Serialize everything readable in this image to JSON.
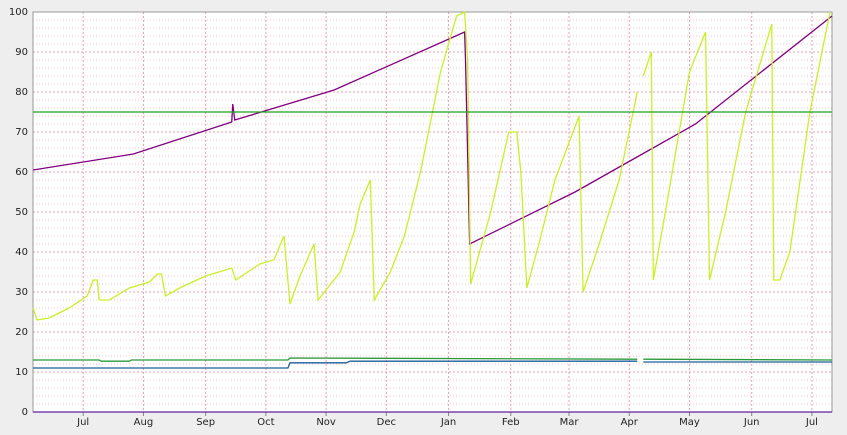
{
  "chart_data": {
    "type": "line",
    "xlim": [
      0,
      398
    ],
    "ylim": [
      0,
      100
    ],
    "xticks": [
      {
        "value": 25,
        "label": "Jul"
      },
      {
        "value": 55,
        "label": "Aug"
      },
      {
        "value": 86,
        "label": "Sep"
      },
      {
        "value": 116,
        "label": "Oct"
      },
      {
        "value": 146,
        "label": "Nov"
      },
      {
        "value": 176,
        "label": "Dec"
      },
      {
        "value": 207,
        "label": "Jan"
      },
      {
        "value": 238,
        "label": "Feb"
      },
      {
        "value": 267,
        "label": "Mar"
      },
      {
        "value": 297,
        "label": "Apr"
      },
      {
        "value": 327,
        "label": "May"
      },
      {
        "value": 358,
        "label": "Jun"
      },
      {
        "value": 388,
        "label": "Jul"
      }
    ],
    "yticks": [
      0,
      10,
      20,
      30,
      40,
      50,
      60,
      70,
      80,
      90,
      100
    ],
    "yminorticks": [
      2,
      4,
      6,
      8,
      12,
      14,
      16,
      18,
      22,
      24,
      26,
      28,
      32,
      34,
      36,
      38,
      42,
      44,
      46,
      48,
      52,
      54,
      56,
      58,
      62,
      64,
      66,
      68,
      72,
      74,
      76,
      78,
      82,
      84,
      86,
      88,
      92,
      94,
      96,
      98
    ],
    "grid": true,
    "series": [
      {
        "color": "#800080",
        "x": [
          0,
          50,
          99,
          99.5,
          100.5,
          150,
          215,
          215.5,
          217.5,
          270,
          300,
          330,
          398
        ],
        "values": [
          60.5,
          64.5,
          72.5,
          77,
          73,
          80.5,
          95,
          87,
          42,
          55,
          63.5,
          72,
          99
        ]
      },
      {
        "color": "#c8f028",
        "x": [
          0,
          2,
          8,
          18,
          27,
          30,
          32,
          33,
          38,
          48,
          58,
          62,
          64,
          66,
          73,
          86,
          99,
          101,
          107,
          113,
          120,
          125,
          128,
          133,
          140,
          142,
          153,
          160,
          163,
          168,
          170,
          178,
          185,
          193,
          203,
          211,
          215,
          216.5,
          218,
          228,
          237,
          241,
          243,
          246,
          252,
          260,
          272,
          274,
          282,
          292,
          301,
          302,
          304,
          308,
          309,
          315,
          327,
          335,
          337,
          345,
          355,
          368,
          369,
          372,
          377,
          387,
          397
        ],
        "values": [
          26,
          23,
          23.5,
          26,
          29,
          33,
          33,
          28,
          28,
          31,
          32.5,
          34.5,
          34.5,
          29,
          31,
          34,
          36,
          33,
          35,
          37,
          38,
          44,
          27,
          34,
          42,
          28,
          35,
          45,
          52,
          58,
          28,
          35,
          44,
          60,
          85,
          99,
          100,
          88,
          32,
          50,
          70,
          70,
          60,
          31,
          42,
          58,
          74,
          30,
          42,
          58,
          80,
          null,
          84,
          90,
          33,
          50,
          85,
          95,
          33,
          50,
          75,
          97,
          33,
          33,
          40,
          75,
          100
        ]
      },
      {
        "color": "#22a022",
        "x": [
          0,
          398
        ],
        "values": [
          75,
          75
        ]
      },
      {
        "color": "#2a9a3a",
        "x": [
          0,
          33,
          34,
          48,
          49,
          127,
          128,
          301,
          302,
          304,
          398
        ],
        "values": [
          13,
          13,
          12.7,
          12.7,
          13,
          13,
          13.5,
          13.2,
          null,
          13.2,
          13
        ]
      },
      {
        "color": "#1f5f9a",
        "x": [
          0,
          127,
          128,
          156,
          158,
          301,
          302,
          304,
          398
        ],
        "values": [
          11,
          11,
          12.3,
          12.3,
          12.7,
          12.7,
          null,
          12.5,
          12.5
        ]
      },
      {
        "color": "#6020a0",
        "x": [
          0,
          398
        ],
        "values": [
          0,
          0
        ]
      }
    ]
  }
}
